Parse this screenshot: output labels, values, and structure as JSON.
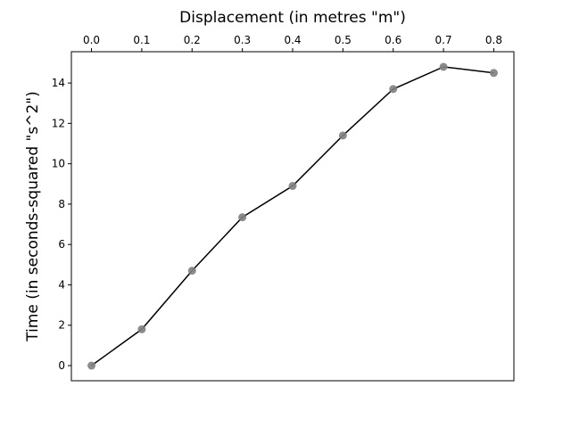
{
  "chart_data": {
    "type": "line",
    "title": "",
    "xlabel": "Displacement (in metres \"m\")",
    "ylabel": "Time (in seconds-squared \"s^2\")",
    "x_axis_position": "top",
    "xlim": [
      -0.04,
      0.84
    ],
    "ylim": [
      -0.75,
      15.55
    ],
    "x_ticks": [
      0.0,
      0.1,
      0.2,
      0.3,
      0.4,
      0.5,
      0.6,
      0.7,
      0.8
    ],
    "x_tick_labels": [
      "0.0",
      "0.1",
      "0.2",
      "0.3",
      "0.4",
      "0.5",
      "0.6",
      "0.7",
      "0.8"
    ],
    "y_ticks": [
      0,
      2,
      4,
      6,
      8,
      10,
      12,
      14
    ],
    "y_tick_labels": [
      "0",
      "2",
      "4",
      "6",
      "8",
      "10",
      "12",
      "14"
    ],
    "grid": false,
    "legend": "none",
    "series": [
      {
        "x": [
          0.0,
          0.1,
          0.2,
          0.3,
          0.4,
          0.5,
          0.6,
          0.7,
          0.8
        ],
        "y": [
          0.0,
          1.8,
          4.7,
          7.35,
          8.9,
          11.4,
          13.7,
          14.8,
          14.5
        ],
        "line_color": "#000000",
        "marker_color": "#808080"
      }
    ]
  }
}
